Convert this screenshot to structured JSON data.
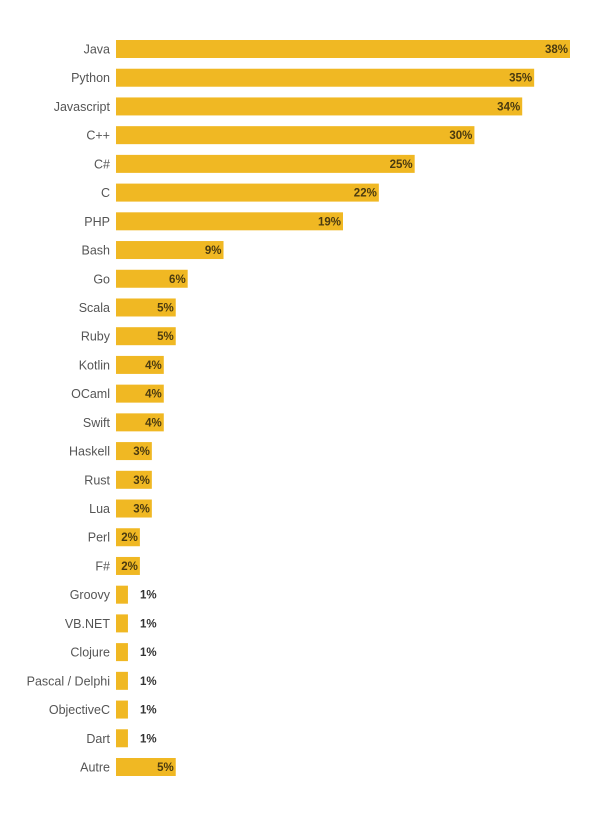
{
  "chart_data": {
    "type": "bar",
    "orientation": "horizontal",
    "title": "",
    "xlabel": "",
    "ylabel": "",
    "xlim": [
      0,
      38
    ],
    "grid": false,
    "legend": "none",
    "bar_color": "#f0b823",
    "value_suffix": "%",
    "categories": [
      "Java",
      "Python",
      "Javascript",
      "C++",
      "C#",
      "C",
      "PHP",
      "Bash",
      "Go",
      "Scala",
      "Ruby",
      "Kotlin",
      "OCaml",
      "Swift",
      "Haskell",
      "Rust",
      "Lua",
      "Perl",
      "F#",
      "Groovy",
      "VB.NET",
      "Clojure",
      "Pascal / Delphi",
      "ObjectiveC",
      "Dart",
      "Autre"
    ],
    "values": [
      38,
      35,
      34,
      30,
      25,
      22,
      19,
      9,
      6,
      5,
      5,
      4,
      4,
      4,
      3,
      3,
      3,
      2,
      2,
      1,
      1,
      1,
      1,
      1,
      1,
      5
    ],
    "data_labels": [
      "38%",
      "35%",
      "34%",
      "30%",
      "25%",
      "22%",
      "19%",
      "9%",
      "6%",
      "5%",
      "5%",
      "4%",
      "4%",
      "4%",
      "3%",
      "3%",
      "3%",
      "2%",
      "2%",
      "1%",
      "1%",
      "1%",
      "1%",
      "1%",
      "1%",
      "5%"
    ]
  }
}
